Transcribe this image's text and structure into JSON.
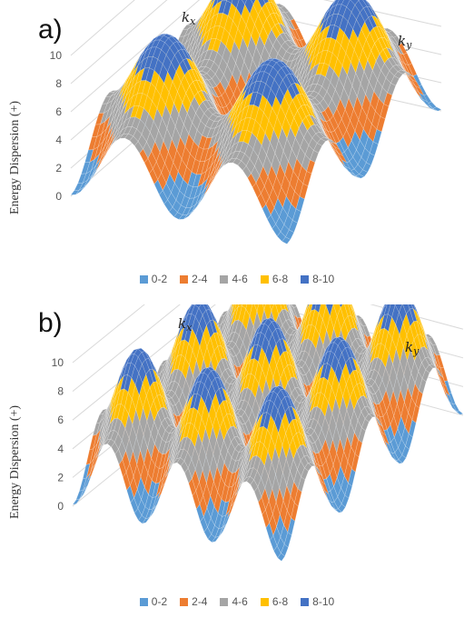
{
  "panels": [
    {
      "label": "a)",
      "kx_label": "k",
      "kx_sub": "x",
      "ky_label": "k",
      "ky_sub": "y",
      "ylabel": "Energy Dispersion (+)",
      "yticks": [
        "0",
        "2",
        "4",
        "6",
        "8",
        "10"
      ],
      "legend": [
        "0-2",
        "2-4",
        "4-6",
        "6-8",
        "8-10"
      ]
    },
    {
      "label": "b)",
      "kx_label": "k",
      "kx_sub": "x",
      "ky_label": "k",
      "ky_sub": "y",
      "ylabel": "Energy Dispersion (+)",
      "yticks": [
        "0",
        "2",
        "4",
        "6",
        "8",
        "10"
      ],
      "legend": [
        "0-2",
        "2-4",
        "4-6",
        "6-8",
        "8-10"
      ]
    }
  ],
  "colors": {
    "band_0_2": "#5b9bd5",
    "band_2_4": "#ed7d31",
    "band_4_6": "#a5a5a5",
    "band_6_8": "#ffc000",
    "band_8_10": "#4472c4",
    "mesh": "#ffffff",
    "grid": "#d9d9d9"
  },
  "chart_data": [
    {
      "type": "surface",
      "panel": "a",
      "zlim": [
        0,
        10
      ],
      "z_bands": [
        "0-2",
        "2-4",
        "4-6",
        "6-8",
        "8-10"
      ],
      "surface": "periodic energy dispersion, 2 peaks along kx and 2 along ky",
      "peaks_kx": 2,
      "peaks_ky": 2,
      "zmin": 0,
      "zmax": 10
    },
    {
      "type": "surface",
      "panel": "b",
      "zlim": [
        0,
        10
      ],
      "z_bands": [
        "0-2",
        "2-4",
        "4-6",
        "6-8",
        "8-10"
      ],
      "surface": "periodic energy dispersion, higher frequency: 3 peaks along kx and 3 along ky",
      "peaks_kx": 3,
      "peaks_ky": 3,
      "zmin": 0,
      "zmax": 10
    }
  ]
}
